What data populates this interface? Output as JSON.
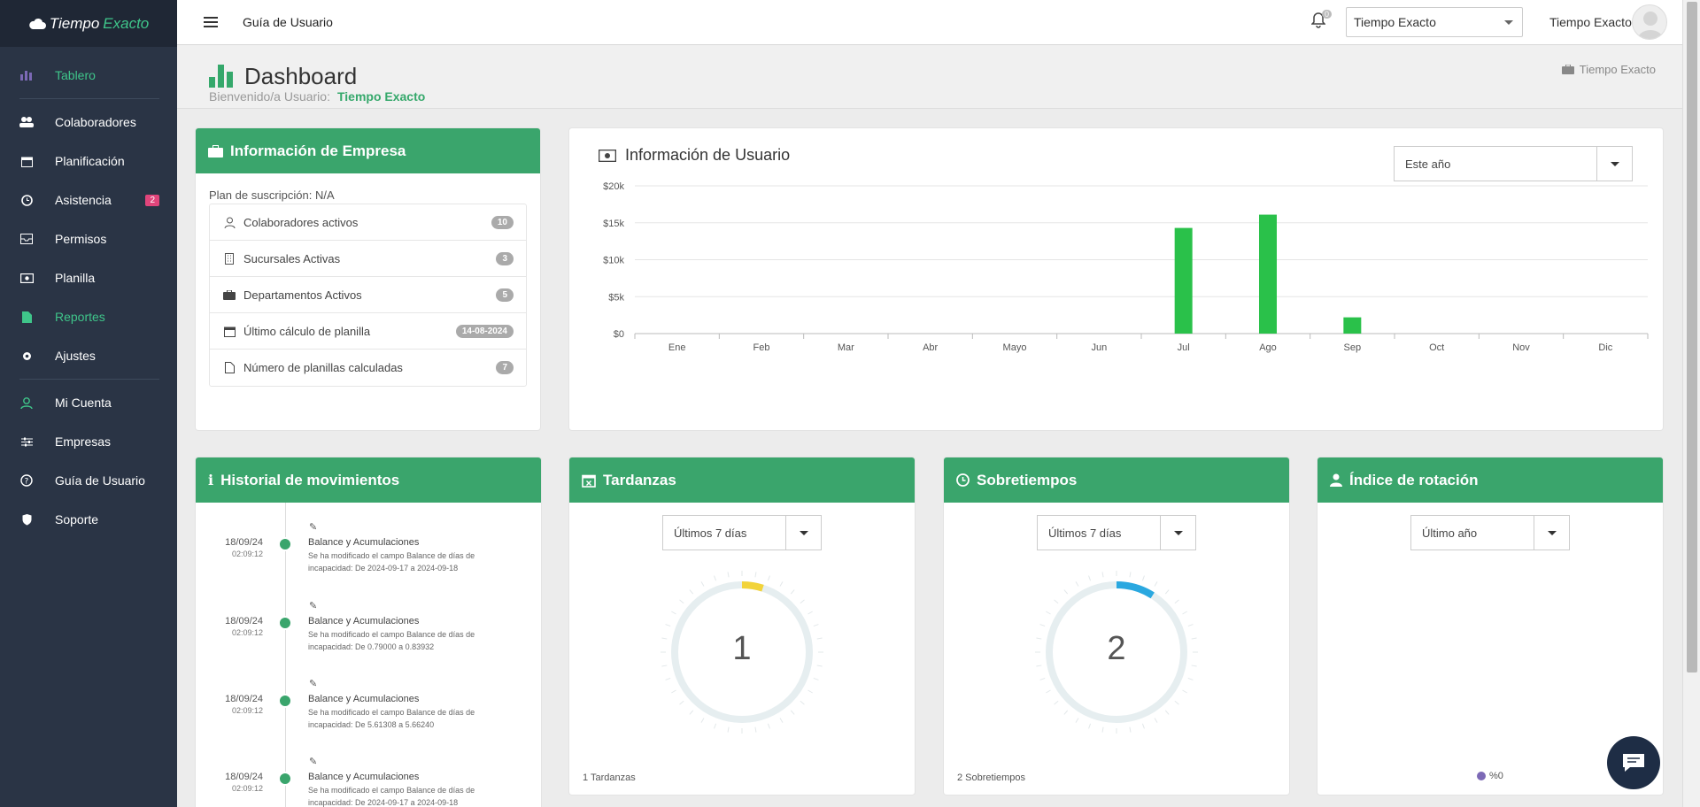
{
  "brand": {
    "name_part1": "Tiempo",
    "name_part2": "Exacto"
  },
  "sidebar": {
    "items": [
      {
        "label": "Tablero",
        "icon": "bar-chart-icon"
      },
      {
        "label": "Colaboradores",
        "icon": "users-icon"
      },
      {
        "label": "Planificación",
        "icon": "calendar-icon"
      },
      {
        "label": "Asistencia",
        "icon": "clock-icon",
        "badge": "2"
      },
      {
        "label": "Permisos",
        "icon": "inbox-icon"
      },
      {
        "label": "Planilla",
        "icon": "money-icon"
      },
      {
        "label": "Reportes",
        "icon": "file-icon"
      },
      {
        "label": "Ajustes",
        "icon": "gear-icon"
      },
      {
        "label": "Mi Cuenta",
        "icon": "user-icon"
      },
      {
        "label": "Empresas",
        "icon": "sliders-icon"
      },
      {
        "label": "Guía de Usuario",
        "icon": "question-icon"
      },
      {
        "label": "Soporte",
        "icon": "shield-icon"
      }
    ]
  },
  "topbar": {
    "guide_label": "Guía de Usuario",
    "notifications_count": "0",
    "company_select": "Tiempo Exacto",
    "user_name": "Tiempo Exacto"
  },
  "page": {
    "title": "Dashboard",
    "welcome_label": "Bienvenido/a Usuario:",
    "welcome_user": "Tiempo Exacto",
    "breadcrumb": "Tiempo Exacto"
  },
  "empresa": {
    "title": "Información de Empresa",
    "plan": "Plan de suscripción: N/A",
    "rows": [
      {
        "label": "Colaboradores activos",
        "value": "10",
        "icon": "user-outline-icon"
      },
      {
        "label": "Sucursales Activas",
        "value": "3",
        "icon": "building-icon"
      },
      {
        "label": "Departamentos Activos",
        "value": "5",
        "icon": "briefcase-icon"
      },
      {
        "label": "Último cálculo de planilla",
        "value": "14-08-2024",
        "icon": "calendar-icon"
      },
      {
        "label": "Número de planillas calculadas",
        "value": "7",
        "icon": "document-icon"
      }
    ]
  },
  "usuario": {
    "title": "Información de Usuario",
    "range_select": "Este año"
  },
  "chart_data": {
    "type": "bar",
    "categories": [
      "Ene",
      "Feb",
      "Mar",
      "Abr",
      "Mayo",
      "Jun",
      "Jul",
      "Ago",
      "Sep",
      "Oct",
      "Nov",
      "Dic"
    ],
    "values": [
      0,
      0,
      0,
      0,
      0,
      0,
      14300,
      16100,
      2200,
      0,
      0,
      0
    ],
    "title": "",
    "xlabel": "",
    "ylabel": "",
    "ylim": [
      0,
      20000
    ],
    "yticks": [
      "$0",
      "$5k",
      "$10k",
      "$15k",
      "$20k"
    ],
    "grid": true,
    "color": "#2ac14a"
  },
  "historial": {
    "title": "Historial de movimientos",
    "items": [
      {
        "date": "18/09/24",
        "time": "02:09:12",
        "title": "Balance y Acumulaciones",
        "desc": "Se ha modificado el campo Balance de días de incapacidad: De 2024-09-17 a 2024-09-18"
      },
      {
        "date": "18/09/24",
        "time": "02:09:12",
        "title": "Balance y Acumulaciones",
        "desc": "Se ha modificado el campo Balance de días de incapacidad: De 0.79000 a 0.83932"
      },
      {
        "date": "18/09/24",
        "time": "02:09:12",
        "title": "Balance y Acumulaciones",
        "desc": "Se ha modificado el campo Balance de días de incapacidad: De 5.61308 a 5.66240"
      },
      {
        "date": "18/09/24",
        "time": "02:09:12",
        "title": "Balance y Acumulaciones",
        "desc": "Se ha modificado el campo Balance de días de incapacidad: De 2024-09-17 a 2024-09-18"
      }
    ]
  },
  "tardanzas": {
    "title": "Tardanzas",
    "range": "Últimos 7 días",
    "value": "1",
    "footer": "1 Tardanzas",
    "color": "#f2d33a",
    "arc_fraction": 0.05
  },
  "sobretiempos": {
    "title": "Sobretiempos",
    "range": "Últimos 7 días",
    "value": "2",
    "footer": "2 Sobretiempos",
    "color": "#2aa8e0",
    "arc_fraction": 0.09
  },
  "rotacion": {
    "title": "Índice de rotación",
    "range": "Último año",
    "legend": "%0",
    "legend_color": "#7c69b6"
  }
}
